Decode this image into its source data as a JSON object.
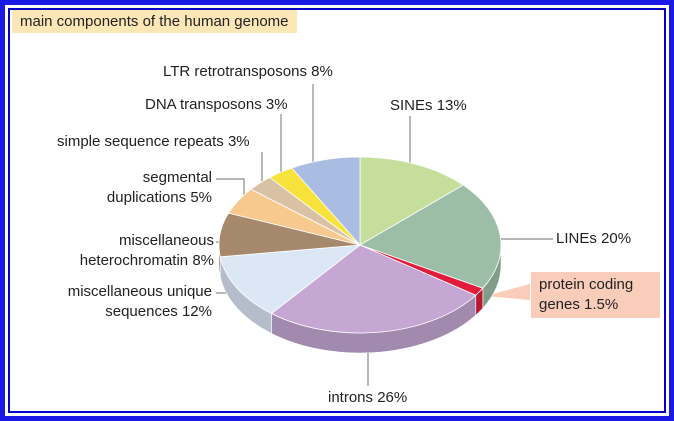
{
  "chart_data": {
    "type": "pie",
    "title": "main components of the human genome",
    "categories": [
      "SINEs",
      "LINEs",
      "protein coding genes",
      "introns",
      "miscellaneous unique sequences",
      "miscellaneous heterochromatin",
      "segmental duplications",
      "simple sequence repeats",
      "DNA transposons",
      "LTR retrotransposons"
    ],
    "values": [
      13,
      20,
      1.5,
      26,
      12,
      8,
      5,
      3,
      3,
      8
    ],
    "value_labels": [
      "13%",
      "20%",
      "1.5%",
      "26%",
      "12%",
      "8%",
      "5%",
      "3%",
      "3%",
      "8%"
    ],
    "colors": [
      "#c6de9c",
      "#9dbea6",
      "#e21d3c",
      "#c6a7d4",
      "#dce7f5",
      "#a6896d",
      "#f8c98f",
      "#d9c2a4",
      "#f7e23c",
      "#a9bce2"
    ]
  }
}
